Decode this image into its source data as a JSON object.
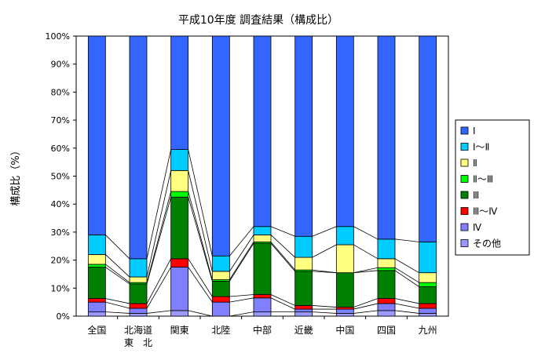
{
  "chart_data": {
    "type": "bar",
    "stacked": true,
    "percent": true,
    "title": "平成10年度 調査結果（構成比）",
    "ylabel": "構成比（%）",
    "ylim": [
      0,
      100
    ],
    "yticks": [
      0,
      10,
      20,
      30,
      40,
      50,
      60,
      70,
      80,
      90,
      100
    ],
    "ytick_suffix": "%",
    "categories": [
      "全国",
      "北海道\n東　北",
      "関東",
      "北陸",
      "中部",
      "近畿",
      "中国",
      "四国",
      "九州"
    ],
    "legend_position": "right",
    "series_lines": true,
    "series": [
      {
        "name": "その他",
        "color": "#9999ff",
        "values": [
          1.5,
          1.0,
          2.0,
          0.0,
          1.5,
          1.5,
          1.0,
          2.0,
          1.0
        ]
      },
      {
        "name": "Ⅳ",
        "color": "#8080ff",
        "values": [
          3.5,
          1.8,
          15.5,
          5.0,
          5.0,
          1.0,
          1.5,
          2.5,
          1.8
        ]
      },
      {
        "name": "Ⅲ～Ⅳ",
        "color": "#ff0000",
        "values": [
          1.3,
          1.7,
          3.0,
          2.0,
          1.2,
          1.3,
          0.7,
          1.8,
          1.7
        ]
      },
      {
        "name": "Ⅲ",
        "color": "#008000",
        "values": [
          11.2,
          7.0,
          22.0,
          5.5,
          18.3,
          12.2,
          12.3,
          10.0,
          6.0
        ]
      },
      {
        "name": "Ⅱ～Ⅲ",
        "color": "#00ff00",
        "values": [
          1.0,
          0.5,
          2.0,
          0.5,
          0.5,
          0.5,
          0.0,
          1.0,
          1.5
        ]
      },
      {
        "name": "Ⅱ",
        "color": "#ffff80",
        "values": [
          3.5,
          2.0,
          7.5,
          3.0,
          2.5,
          4.5,
          10.0,
          3.2,
          3.5
        ]
      },
      {
        "name": "Ⅰ～Ⅱ",
        "color": "#00ccff",
        "values": [
          7.0,
          6.5,
          7.5,
          5.5,
          3.0,
          7.5,
          6.5,
          7.0,
          11.0
        ]
      },
      {
        "name": "Ⅰ",
        "color": "#3366ff",
        "values": [
          71.0,
          79.5,
          40.5,
          78.5,
          68.0,
          71.5,
          68.0,
          72.5,
          73.5
        ]
      }
    ]
  }
}
